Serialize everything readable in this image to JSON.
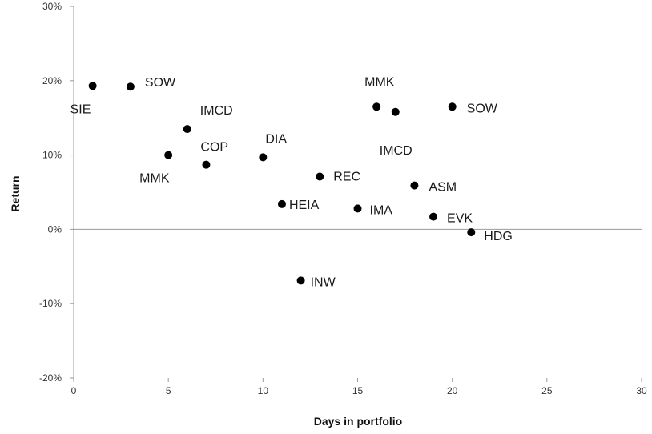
{
  "chart_data": {
    "type": "scatter",
    "xlabel": "Days in portfolio",
    "ylabel": "Return",
    "xlim": [
      0,
      30
    ],
    "ylim": [
      -0.2,
      0.3
    ],
    "x_ticks": [
      0,
      5,
      10,
      15,
      20,
      25,
      30
    ],
    "y_ticks": [
      -0.2,
      -0.1,
      0,
      0.1,
      0.2,
      0.3
    ],
    "x_tick_labels": [
      "0",
      "5",
      "10",
      "15",
      "20",
      "25",
      "30"
    ],
    "y_tick_labels": [
      "-20%",
      "-10%",
      "0%",
      "10%",
      "20%",
      "30%"
    ],
    "grid": false,
    "marker_color": "#000000",
    "points": [
      {
        "label": "SIE",
        "x": 1,
        "y": 0.193
      },
      {
        "label": "SOW",
        "x": 3,
        "y": 0.192
      },
      {
        "label": "MMK",
        "x": 5,
        "y": 0.1
      },
      {
        "label": "IMCD",
        "x": 6,
        "y": 0.135
      },
      {
        "label": "COP",
        "x": 7,
        "y": 0.087
      },
      {
        "label": "DIA",
        "x": 10,
        "y": 0.097
      },
      {
        "label": "HEIA",
        "x": 11,
        "y": 0.034
      },
      {
        "label": "INW",
        "x": 12,
        "y": -0.069
      },
      {
        "label": "REC",
        "x": 13,
        "y": 0.071
      },
      {
        "label": "IMA",
        "x": 15,
        "y": 0.028
      },
      {
        "label": "MMK",
        "x": 16,
        "y": 0.165
      },
      {
        "label": "IMCD",
        "x": 17,
        "y": 0.158
      },
      {
        "label": "ASM",
        "x": 18,
        "y": 0.059
      },
      {
        "label": "EVK",
        "x": 19,
        "y": 0.017
      },
      {
        "label": "SOW",
        "x": 20,
        "y": 0.165
      },
      {
        "label": "HDG",
        "x": 21,
        "y": -0.004
      }
    ]
  }
}
